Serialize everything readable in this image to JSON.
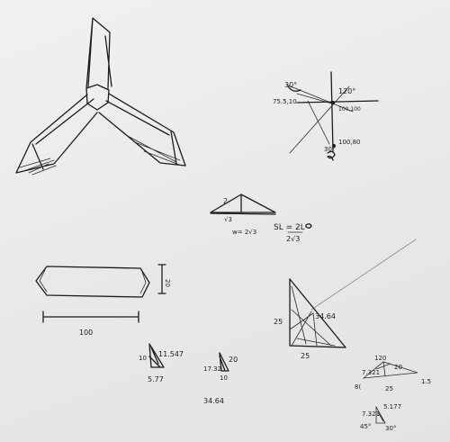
{
  "canvas": {
    "paper_color": "#eeedec",
    "ink_color": "#1c1c1c",
    "pencil_color": "#8a8a8a"
  },
  "labels": {
    "angle_30_top": "30°",
    "point_75_5_10": "75.5,10",
    "angle_120_right": "120°",
    "point_100_100": "100,100",
    "point_100_80": "100,80",
    "angle_30_bottom": "30°",
    "small_2": "2",
    "small_root3": "√3",
    "formula_left": "w= 2√3",
    "formula_sl": "SL = 2L",
    "formula_den": "2√3",
    "dim_20": "20",
    "dim_100": "100",
    "tri1_10": "10",
    "tri1_11547": "11.547",
    "tri1_577": "5.77",
    "tri2_20": "20",
    "tri2_1732": "17.32",
    "tri2_10": "10",
    "tri2_3464": "34.64",
    "big_25_left": "25",
    "big_3464": "34.64",
    "big_25_bottom": "25",
    "r_120": "120",
    "r_7321": "7.321",
    "r_20": "20",
    "r_15": "1.5",
    "r_8": "8(",
    "r_25": "25",
    "s_7321": "7.321",
    "s_5177": "5.177",
    "s_45": "45°",
    "s_30": "30°"
  }
}
